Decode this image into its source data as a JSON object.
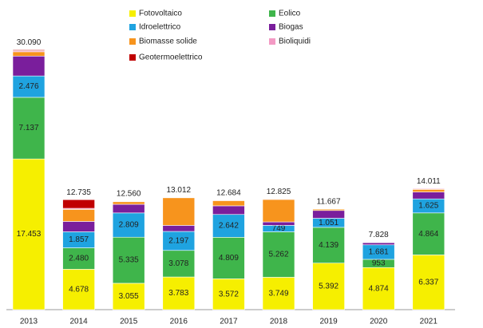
{
  "chart_data": {
    "type": "stacked_bar",
    "categories": [
      "2013",
      "2014",
      "2015",
      "2016",
      "2017",
      "2018",
      "2019",
      "2020",
      "2021"
    ],
    "series": [
      {
        "name": "Fotovoltaico",
        "color": "#f6ef00",
        "values": [
          17453,
          4678,
          3055,
          3783,
          3572,
          3749,
          5392,
          4874,
          6337
        ],
        "value_labels": [
          "17.453",
          "4.678",
          "3.055",
          "3.783",
          "3.572",
          "3.749",
          "5.392",
          "4.874",
          "6.337"
        ]
      },
      {
        "name": "Eolico",
        "color": "#3fb54b",
        "values": [
          7137,
          2480,
          5335,
          3078,
          4809,
          5262,
          4139,
          953,
          4864
        ],
        "value_labels": [
          "7.137",
          "2.480",
          "5.335",
          "3.078",
          "4.809",
          "5.262",
          "4.139",
          "953",
          "4.864"
        ]
      },
      {
        "name": "Idroelettrico",
        "color": "#1fa3e0",
        "values": [
          2476,
          1857,
          2809,
          2197,
          2642,
          749,
          1051,
          1681,
          1625
        ],
        "value_labels": [
          "2.476",
          "1.857",
          "2.809",
          "2.197",
          "2.642",
          "749",
          "1.051",
          "1.681",
          "1.625"
        ]
      },
      {
        "name": "Biogas",
        "color": "#7a1e9c",
        "values": [
          2300,
          1200,
          1000,
          700,
          1000,
          400,
          900,
          250,
          800
        ]
      },
      {
        "name": "Biomasse solide",
        "color": "#f7941d",
        "values": [
          500,
          1400,
          300,
          3200,
          600,
          2600,
          150,
          50,
          300
        ]
      },
      {
        "name": "Bioliquidi",
        "color": "#f39ac4",
        "values": [
          124,
          120,
          61,
          54,
          61,
          65,
          35,
          20,
          85
        ]
      },
      {
        "name": "Geotermoelettrico",
        "color": "#c00000",
        "values": [
          100,
          1000,
          0,
          0,
          0,
          0,
          0,
          0,
          0
        ]
      }
    ],
    "totals": [
      {
        "value": 30090,
        "label": "30.090"
      },
      {
        "value": 12735,
        "label": "12.735"
      },
      {
        "value": 12560,
        "label": "12.560"
      },
      {
        "value": 13012,
        "label": "13.012"
      },
      {
        "value": 12684,
        "label": "12.684"
      },
      {
        "value": 12825,
        "label": "12.825"
      },
      {
        "value": 11667,
        "label": "11.667"
      },
      {
        "value": 7828,
        "label": "7.828"
      },
      {
        "value": 14011,
        "label": "14.011"
      }
    ],
    "ylim": [
      0,
      30500
    ]
  }
}
